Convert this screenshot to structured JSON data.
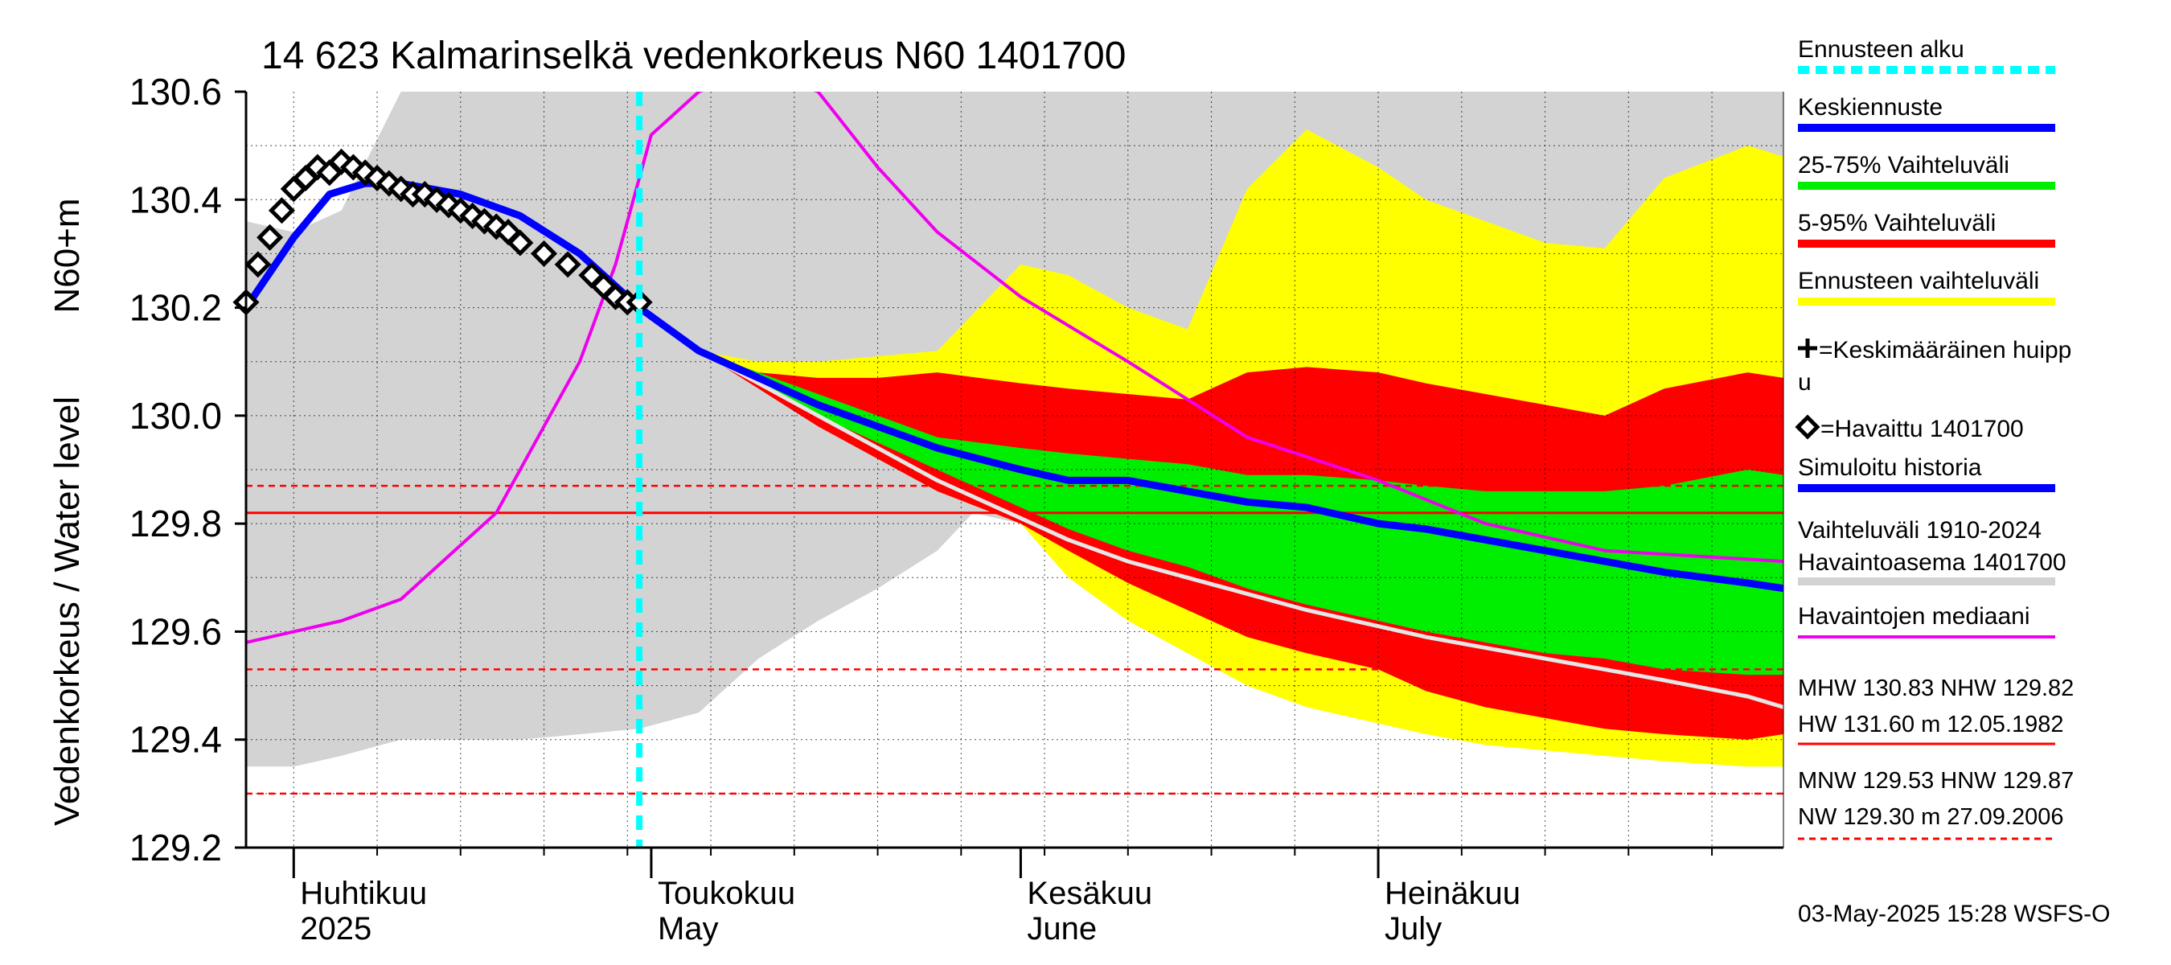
{
  "chart_data": {
    "type": "line",
    "title": "14 623 Kalmarinselkä vedenkorkeus N60 1401700",
    "ylabel": "Vedenkorkeus / Water level",
    "ylabel_unit": "N60+m",
    "ylim": [
      129.2,
      130.6
    ],
    "yticks": [
      "129.2",
      "129.4",
      "129.6",
      "129.8",
      "130.0",
      "130.2",
      "130.4",
      "130.6"
    ],
    "x_range": [
      "2025-03-28",
      "2025-08-04"
    ],
    "grid": true,
    "months": [
      {
        "date": "2025-04-01",
        "fi": "Huhtikuu",
        "en": "2025"
      },
      {
        "date": "2025-05-01",
        "fi": "Toukokuu",
        "en": "May"
      },
      {
        "date": "2025-06-01",
        "fi": "Kesäkuu",
        "en": "June"
      },
      {
        "date": "2025-07-01",
        "fi": "Heinäkuu",
        "en": "July"
      }
    ],
    "forecast_start": "2025-04-30",
    "reference_lines": {
      "MHW": 130.83,
      "NHW": 129.82,
      "HW": 131.6,
      "MNW": 129.53,
      "HNW": 129.87,
      "NW": 129.3
    },
    "series": [
      {
        "name": "Vaihteluväli 1910-2024 Havaintoasema 1401700",
        "color": "#d3d3d3",
        "x": [
          "2025-03-28",
          "2025-04-01",
          "2025-04-05",
          "2025-04-10",
          "2025-04-20",
          "2025-04-30",
          "2025-05-05",
          "2025-05-10",
          "2025-05-15",
          "2025-05-20",
          "2025-05-25",
          "2025-05-28",
          "2025-06-01",
          "2025-06-10",
          "2025-06-20",
          "2025-07-01",
          "2025-07-10",
          "2025-07-15",
          "2025-07-20",
          "2025-07-25",
          "2025-08-01",
          "2025-08-04"
        ],
        "upper": [
          130.36,
          130.34,
          130.38,
          130.6,
          130.6,
          130.6,
          130.6,
          130.6,
          130.6,
          130.6,
          130.6,
          130.6,
          130.6,
          130.6,
          130.6,
          130.6,
          130.6,
          130.6,
          130.6,
          130.6,
          130.6,
          130.6
        ],
        "lower": [
          129.35,
          129.35,
          129.37,
          129.4,
          129.4,
          129.42,
          129.45,
          129.55,
          129.62,
          129.68,
          129.75,
          129.82,
          129.8,
          129.76,
          129.7,
          129.6,
          129.5,
          129.45,
          129.42,
          129.4,
          129.38,
          129.37
        ]
      },
      {
        "name": "Ennusteen vaihteluväli",
        "color": "#ffff00",
        "x": [
          "2025-04-30",
          "2025-05-05",
          "2025-05-10",
          "2025-05-15",
          "2025-05-20",
          "2025-05-25",
          "2025-06-01",
          "2025-06-05",
          "2025-06-10",
          "2025-06-15",
          "2025-06-20",
          "2025-06-25",
          "2025-07-01",
          "2025-07-05",
          "2025-07-10",
          "2025-07-15",
          "2025-07-20",
          "2025-07-25",
          "2025-08-01",
          "2025-08-04"
        ],
        "upper": [
          130.2,
          130.12,
          130.1,
          130.1,
          130.11,
          130.12,
          130.28,
          130.26,
          130.2,
          130.16,
          130.42,
          130.53,
          130.46,
          130.4,
          130.36,
          130.32,
          130.31,
          130.44,
          130.5,
          130.48
        ],
        "lower": [
          130.2,
          130.12,
          130.06,
          130.0,
          129.94,
          129.86,
          129.8,
          129.7,
          129.62,
          129.56,
          129.5,
          129.46,
          129.43,
          129.41,
          129.39,
          129.38,
          129.37,
          129.36,
          129.35,
          129.35
        ]
      },
      {
        "name": "5-95% Vaihteluväli",
        "color": "#ff0000",
        "x": [
          "2025-04-30",
          "2025-05-05",
          "2025-05-10",
          "2025-05-15",
          "2025-05-20",
          "2025-05-25",
          "2025-06-01",
          "2025-06-05",
          "2025-06-10",
          "2025-06-15",
          "2025-06-20",
          "2025-06-25",
          "2025-07-01",
          "2025-07-05",
          "2025-07-10",
          "2025-07-15",
          "2025-07-20",
          "2025-07-25",
          "2025-08-01",
          "2025-08-04"
        ],
        "upper": [
          130.2,
          130.12,
          130.08,
          130.07,
          130.07,
          130.08,
          130.06,
          130.05,
          130.04,
          130.03,
          130.08,
          130.09,
          130.08,
          130.06,
          130.04,
          130.02,
          130.0,
          130.05,
          130.08,
          130.07
        ],
        "lower": [
          130.2,
          130.12,
          130.05,
          129.98,
          129.92,
          129.86,
          129.8,
          129.75,
          129.69,
          129.64,
          129.59,
          129.56,
          129.53,
          129.49,
          129.46,
          129.44,
          129.42,
          129.41,
          129.4,
          129.41
        ]
      },
      {
        "name": "25-75% Vaihteluväli",
        "color": "#00ee00",
        "x": [
          "2025-04-30",
          "2025-05-05",
          "2025-05-10",
          "2025-05-15",
          "2025-05-20",
          "2025-05-25",
          "2025-06-01",
          "2025-06-05",
          "2025-06-10",
          "2025-06-15",
          "2025-06-20",
          "2025-06-25",
          "2025-07-01",
          "2025-07-05",
          "2025-07-10",
          "2025-07-15",
          "2025-07-20",
          "2025-07-25",
          "2025-08-01",
          "2025-08-04"
        ],
        "upper": [
          130.2,
          130.12,
          130.08,
          130.04,
          130.0,
          129.96,
          129.94,
          129.93,
          129.92,
          129.91,
          129.89,
          129.89,
          129.88,
          129.87,
          129.86,
          129.86,
          129.86,
          129.87,
          129.9,
          129.89
        ],
        "lower": [
          130.2,
          130.12,
          130.06,
          130.0,
          129.95,
          129.9,
          129.83,
          129.79,
          129.75,
          129.72,
          129.68,
          129.65,
          129.62,
          129.6,
          129.58,
          129.56,
          129.55,
          129.53,
          129.52,
          129.52
        ]
      },
      {
        "name": "Havaintojen mediaani",
        "color": "#ee00ee",
        "x": [
          "2025-03-28",
          "2025-04-01",
          "2025-04-05",
          "2025-04-10",
          "2025-04-14",
          "2025-04-18",
          "2025-04-22",
          "2025-04-25",
          "2025-04-28",
          "2025-05-01",
          "2025-05-05",
          "2025-05-10",
          "2025-05-15",
          "2025-05-20",
          "2025-05-25",
          "2025-06-01",
          "2025-06-10",
          "2025-06-20",
          "2025-07-01",
          "2025-07-10",
          "2025-07-20",
          "2025-08-04"
        ],
        "y": [
          129.58,
          129.6,
          129.62,
          129.66,
          129.74,
          129.82,
          129.98,
          130.1,
          130.28,
          130.52,
          130.6,
          130.64,
          130.6,
          130.46,
          130.34,
          130.22,
          130.1,
          129.96,
          129.88,
          129.8,
          129.75,
          129.73
        ]
      },
      {
        "name": "Keskiennuste (median, white)",
        "color": "#e6e6e6",
        "x": [
          "2025-04-30",
          "2025-05-05",
          "2025-05-10",
          "2025-05-15",
          "2025-05-20",
          "2025-05-25",
          "2025-06-01",
          "2025-06-05",
          "2025-06-10",
          "2025-06-15",
          "2025-06-20",
          "2025-06-25",
          "2025-07-01",
          "2025-07-05",
          "2025-07-10",
          "2025-07-15",
          "2025-07-20",
          "2025-07-25",
          "2025-08-01",
          "2025-08-04"
        ],
        "y": [
          130.2,
          130.12,
          130.06,
          130.0,
          129.94,
          129.88,
          129.81,
          129.77,
          129.73,
          129.7,
          129.67,
          129.64,
          129.61,
          129.59,
          129.57,
          129.55,
          129.53,
          129.51,
          129.48,
          129.46
        ]
      },
      {
        "name": "Keskiennuste",
        "color": "#0000ff",
        "x": [
          "2025-03-28",
          "2025-04-01",
          "2025-04-04",
          "2025-04-07",
          "2025-04-10",
          "2025-04-15",
          "2025-04-20",
          "2025-04-25",
          "2025-04-30",
          "2025-05-05",
          "2025-05-10",
          "2025-05-15",
          "2025-05-20",
          "2025-05-25",
          "2025-06-01",
          "2025-06-05",
          "2025-06-10",
          "2025-06-15",
          "2025-06-20",
          "2025-06-25",
          "2025-07-01",
          "2025-07-05",
          "2025-07-10",
          "2025-07-15",
          "2025-07-20",
          "2025-07-25",
          "2025-08-01",
          "2025-08-04"
        ],
        "y": [
          130.2,
          130.33,
          130.41,
          130.43,
          130.43,
          130.41,
          130.37,
          130.3,
          130.2,
          130.12,
          130.07,
          130.02,
          129.98,
          129.94,
          129.9,
          129.88,
          129.88,
          129.86,
          129.84,
          129.83,
          129.8,
          129.79,
          129.77,
          129.75,
          129.73,
          129.71,
          129.69,
          129.68
        ]
      },
      {
        "name": "Havaittu 1401700",
        "color": "#000000",
        "marker": "diamond",
        "x": [
          "2025-03-28",
          "2025-03-29",
          "2025-03-30",
          "2025-03-31",
          "2025-04-01",
          "2025-04-02",
          "2025-04-03",
          "2025-04-04",
          "2025-04-05",
          "2025-04-06",
          "2025-04-07",
          "2025-04-08",
          "2025-04-09",
          "2025-04-10",
          "2025-04-11",
          "2025-04-12",
          "2025-04-13",
          "2025-04-14",
          "2025-04-15",
          "2025-04-16",
          "2025-04-17",
          "2025-04-18",
          "2025-04-19",
          "2025-04-20",
          "2025-04-22",
          "2025-04-24",
          "2025-04-26",
          "2025-04-27",
          "2025-04-28",
          "2025-04-29",
          "2025-04-30"
        ],
        "y": [
          130.21,
          130.28,
          130.33,
          130.38,
          130.42,
          130.44,
          130.46,
          130.45,
          130.47,
          130.46,
          130.45,
          130.44,
          130.43,
          130.42,
          130.41,
          130.41,
          130.4,
          130.39,
          130.38,
          130.37,
          130.36,
          130.35,
          130.34,
          130.32,
          130.3,
          130.28,
          130.26,
          130.24,
          130.22,
          130.21,
          130.21
        ]
      }
    ],
    "legend": [
      {
        "label": "Ennusteen alku",
        "style": "dashed",
        "color": "#00ffff"
      },
      {
        "label": "Keskiennuste",
        "style": "line",
        "color": "#0000ff"
      },
      {
        "label": "25-75% Vaihteluväli",
        "style": "line",
        "color": "#00ee00"
      },
      {
        "label": "5-95% Vaihteluväli",
        "style": "line",
        "color": "#ff0000"
      },
      {
        "label": "Ennusteen vaihteluväli",
        "style": "line",
        "color": "#ffff00"
      },
      {
        "label": "=Keskimääräinen huipp",
        "label2": "u",
        "style": "plus",
        "color": "#000000"
      },
      {
        "label": "=Havaittu 1401700",
        "style": "diamond",
        "color": "#000000"
      },
      {
        "label": "Simuloitu historia",
        "style": "line",
        "color": "#0000ff"
      },
      {
        "label": "Vaihteluväli 1910-2024",
        "label2": " Havaintoasema 1401700",
        "style": "line",
        "color": "#d3d3d3"
      },
      {
        "label": "Havaintojen mediaani",
        "style": "thin",
        "color": "#ee00ee"
      }
    ],
    "stats": {
      "line1": "MHW 130.83 NHW 129.82",
      "line2": "HW 131.60 m 12.05.1982",
      "line3": "MNW 129.53 HNW 129.87",
      "line4": "NW 129.30 m 27.09.2006"
    },
    "footer": "03-May-2025 15:28 WSFS-O"
  }
}
